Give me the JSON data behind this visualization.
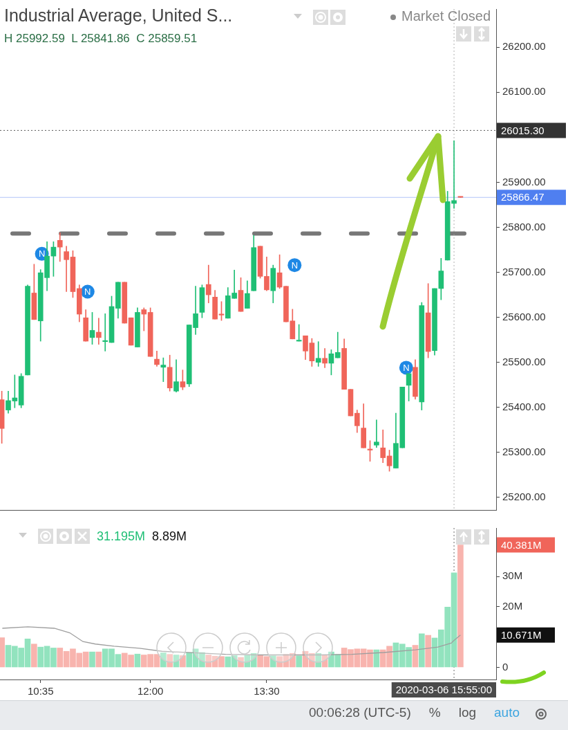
{
  "chart_data": [
    {
      "type": "candlestick",
      "title": "Industrial Average, United S...",
      "subtitle": "H 25992.59  L 25841.86  C 25859.51",
      "x": [
        10.0833,
        10.1667,
        10.25,
        10.3333,
        10.4167,
        10.5,
        10.5833,
        10.6667,
        10.75,
        10.8333,
        10.9167,
        11,
        11.0833,
        11.1667,
        11.25,
        11.3333,
        11.4167,
        11.5,
        11.5833,
        11.6667,
        11.75,
        11.8333,
        11.9167,
        12,
        12.0833,
        12.1667,
        12.25,
        12.3333,
        12.4167,
        12.5,
        12.5833,
        12.6667,
        12.75,
        12.8333,
        12.9167,
        13,
        13.0833,
        13.1667,
        13.25,
        13.3333,
        13.4167,
        13.5,
        13.5833,
        13.6667,
        13.75,
        13.8333,
        13.9167,
        14,
        14.0833,
        14.1667,
        14.25,
        14.3333,
        14.4167,
        14.5,
        14.5833,
        14.6667,
        14.75,
        14.8333,
        14.9167,
        15,
        15.0833,
        15.1667,
        15.25,
        15.3333,
        15.4167,
        15.5,
        15.5833,
        15.6667,
        15.75,
        15.8333,
        15.9167,
        16
      ],
      "ohlc": [
        [
          25417,
          25436,
          25320,
          25353
        ],
        [
          25394,
          25436,
          25387,
          25415
        ],
        [
          25414,
          25472,
          25399,
          25421
        ],
        [
          25405,
          25475,
          25399,
          25469
        ],
        [
          25472,
          25672,
          25472,
          25669
        ],
        [
          25654,
          25718,
          25595,
          25595
        ],
        [
          25592,
          25706,
          25547,
          25699
        ],
        [
          25688,
          25768,
          25659,
          25736
        ],
        [
          25736,
          25768,
          25691,
          25756
        ],
        [
          25771,
          25788,
          25724,
          25756
        ],
        [
          25746,
          25758,
          25657,
          25728
        ],
        [
          25734,
          25748,
          25644,
          25657
        ],
        [
          25664,
          25672,
          25590,
          25607
        ],
        [
          25599,
          25617,
          25547,
          25547
        ],
        [
          25555,
          25611,
          25540,
          25571
        ],
        [
          25567,
          25598,
          25540,
          25555
        ],
        [
          25546,
          25608,
          25525,
          25546
        ],
        [
          25544,
          25647,
          25544,
          25624
        ],
        [
          25620,
          25678,
          25598,
          25678
        ],
        [
          25678,
          25678,
          25587,
          25587
        ],
        [
          25599,
          25599,
          25538,
          25538
        ],
        [
          25534,
          25621,
          25534,
          25611
        ],
        [
          25617,
          25621,
          25570,
          25607
        ],
        [
          25611,
          25621,
          25513,
          25513
        ],
        [
          25507,
          25525,
          25491,
          25495
        ],
        [
          25489,
          25510,
          25457,
          25494
        ],
        [
          25489,
          25516,
          25436,
          25443
        ],
        [
          25436,
          25506,
          25434,
          25457
        ],
        [
          25457,
          25483,
          25439,
          25445
        ],
        [
          25452,
          25583,
          25446,
          25583
        ],
        [
          25577,
          25669,
          25562,
          25608
        ],
        [
          25611,
          25672,
          25599,
          25666
        ],
        [
          25673,
          25716,
          25632,
          25650
        ],
        [
          25645,
          25660,
          25596,
          25596
        ],
        [
          25605,
          25635,
          25593,
          25605
        ],
        [
          25598,
          25666,
          25598,
          25648
        ],
        [
          25642,
          25705,
          25642,
          25654
        ],
        [
          25660,
          25688,
          25613,
          25613
        ],
        [
          25620,
          25681,
          25620,
          25653
        ],
        [
          25659,
          25782,
          25659,
          25755
        ],
        [
          25758,
          25758,
          25687,
          25691
        ],
        [
          25691,
          25734,
          25659,
          25661
        ],
        [
          25659,
          25716,
          25632,
          25709
        ],
        [
          25699,
          25739,
          25664,
          25667
        ],
        [
          25669,
          25669,
          25590,
          25590
        ],
        [
          25592,
          25618,
          25552,
          25552
        ],
        [
          25547,
          25584,
          25547,
          25547
        ],
        [
          25559,
          25559,
          25506,
          25525
        ],
        [
          25543,
          25553,
          25491,
          25503
        ],
        [
          25500,
          25546,
          25491,
          25509
        ],
        [
          25509,
          25531,
          25488,
          25498
        ],
        [
          25498,
          25528,
          25472,
          25519
        ],
        [
          25510,
          25567,
          25510,
          25522
        ],
        [
          25531,
          25552,
          25440,
          25440
        ],
        [
          25440,
          25440,
          25381,
          25381
        ],
        [
          25387,
          25394,
          25344,
          25359
        ],
        [
          25354,
          25408,
          25310,
          25310
        ],
        [
          25305,
          25326,
          25280,
          25305
        ],
        [
          25316,
          25372,
          25311,
          25323
        ],
        [
          25310,
          25350,
          25277,
          25288
        ],
        [
          25292,
          25305,
          25258,
          25270
        ],
        [
          25265,
          25387,
          25265,
          25320
        ],
        [
          25310,
          25445,
          25310,
          25445
        ],
        [
          25449,
          25475,
          25414,
          25475
        ],
        [
          25489,
          25506,
          25418,
          25424
        ],
        [
          25412,
          25633,
          25394,
          25626
        ],
        [
          25610,
          25675,
          25510,
          25524
        ],
        [
          25526,
          25664,
          25516,
          25664
        ],
        [
          25664,
          25731,
          25639,
          25703
        ],
        [
          25727,
          25880,
          25727,
          25857
        ],
        [
          25853,
          25992.59,
          25841.86,
          25859.51
        ],
        [
          25868,
          25868,
          25866.47,
          25866.47
        ]
      ],
      "colors": [
        "#f0655a",
        "#1fbf75",
        "#1fbf75",
        "#1fbf75",
        "#1fbf75",
        "#f0655a",
        "#1fbf75",
        "#1fbf75",
        "#1fbf75",
        "#f0655a",
        "#f0655a",
        "#f0655a",
        "#f0655a",
        "#f0655a",
        "#1fbf75",
        "#f0655a",
        "#1fbf75",
        "#1fbf75",
        "#1fbf75",
        "#f0655a",
        "#f0655a",
        "#1fbf75",
        "#f0655a",
        "#f0655a",
        "#f0655a",
        "#1fbf75",
        "#f0655a",
        "#1fbf75",
        "#f0655a",
        "#1fbf75",
        "#1fbf75",
        "#1fbf75",
        "#f0655a",
        "#f0655a",
        "#f0655a",
        "#1fbf75",
        "#1fbf75",
        "#f0655a",
        "#1fbf75",
        "#1fbf75",
        "#f0655a",
        "#f0655a",
        "#1fbf75",
        "#f0655a",
        "#f0655a",
        "#f0655a",
        "#1fbf75",
        "#f0655a",
        "#f0655a",
        "#1fbf75",
        "#f0655a",
        "#1fbf75",
        "#1fbf75",
        "#f0655a",
        "#f0655a",
        "#f0655a",
        "#f0655a",
        "#f0655a",
        "#1fbf75",
        "#f0655a",
        "#f0655a",
        "#1fbf75",
        "#1fbf75",
        "#1fbf75",
        "#f0655a",
        "#1fbf75",
        "#f0655a",
        "#1fbf75",
        "#1fbf75",
        "#1fbf75",
        "#1fbf75",
        "#f0655a"
      ],
      "xlim": [
        10.06,
        16.46
      ],
      "ylim": [
        25172,
        26285
      ],
      "yticks": [
        {
          "value": 25200,
          "label": "25200.00"
        },
        {
          "value": 25300,
          "label": "25300.00"
        },
        {
          "value": 25400,
          "label": "25400.00"
        },
        {
          "value": 25500,
          "label": "25500.00"
        },
        {
          "value": 25600,
          "label": "25600.00"
        },
        {
          "value": 25700,
          "label": "25700.00"
        },
        {
          "value": 25800,
          "label": "25800.00"
        },
        {
          "value": 25900,
          "label": "25900.00"
        },
        {
          "value": 26100,
          "label": "26100.00"
        },
        {
          "value": 26200,
          "label": "26200.00"
        }
      ],
      "tick_labels": "y",
      "ref_lines": [
        {
          "axis": "y",
          "value": 26015.3,
          "label": "26015.30",
          "color": "#333333",
          "line_style": "dotted"
        },
        {
          "axis": "y",
          "value": 25866.47,
          "label": "25866.47",
          "color": "#4f7ff0",
          "line_style": "solid"
        },
        {
          "axis": "y",
          "value": 25786,
          "color": "#555555",
          "line_style": "dashed"
        },
        {
          "axis": "x",
          "value": 15.9167,
          "color": "#9e9e9e",
          "line_style": "dotted"
        }
      ],
      "annotations": [
        "Market Closed",
        {
          "text": "N",
          "x": 10.6,
          "y": 25741
        },
        {
          "text": "N",
          "x": 11.19,
          "y": 25657
        },
        {
          "text": "N",
          "x": 13.86,
          "y": 25716
        },
        {
          "text": "N",
          "x": 15.3,
          "y": 25488
        }
      ]
    },
    {
      "type": "bar",
      "x": [
        10.0833,
        10.1667,
        10.25,
        10.3333,
        10.4167,
        10.5,
        10.5833,
        10.6667,
        10.75,
        10.8333,
        10.9167,
        11,
        11.0833,
        11.1667,
        11.25,
        11.3333,
        11.4167,
        11.5,
        11.5833,
        11.6667,
        11.75,
        11.8333,
        11.9167,
        12,
        12.0833,
        12.1667,
        12.25,
        12.3333,
        12.4167,
        12.5,
        12.5833,
        12.6667,
        12.75,
        12.8333,
        12.9167,
        13,
        13.0833,
        13.1667,
        13.25,
        13.3333,
        13.4167,
        13.5,
        13.5833,
        13.6667,
        13.75,
        13.8333,
        13.9167,
        14,
        14.0833,
        14.1667,
        14.25,
        14.3333,
        14.4167,
        14.5,
        14.5833,
        14.6667,
        14.75,
        14.8333,
        14.9167,
        15,
        15.0833,
        15.1667,
        15.25,
        15.3333,
        15.4167,
        15.5,
        15.5833,
        15.6667,
        15.75,
        15.8333,
        15.9167,
        16
      ],
      "series": [
        {
          "type": "bar",
          "values": [
            9.8,
            7.3,
            7.0,
            6.4,
            9.4,
            7.7,
            6.7,
            7.0,
            6.4,
            6.4,
            5.3,
            6.1,
            4.7,
            5.1,
            5.1,
            5.1,
            6.1,
            6.1,
            4.3,
            4.7,
            4.1,
            4.4,
            4.1,
            4.3,
            4.3,
            4.8,
            4.3,
            4.1,
            3.9,
            4.9,
            6.1,
            4.9,
            4.1,
            3.7,
            3.6,
            3.5,
            3.9,
            3.3,
            3.9,
            4.6,
            4.1,
            3.6,
            3.8,
            3.6,
            4.3,
            4.6,
            3.8,
            5.3,
            4.6,
            4.6,
            4.1,
            5.1,
            4.3,
            6.4,
            5.9,
            6.1,
            6.1,
            5.8,
            5.8,
            5.8,
            7.0,
            8.1,
            7.7,
            6.6,
            7.3,
            11.1,
            10.6,
            9.7,
            12.4,
            19.9,
            31.195,
            40.381
          ],
          "colors": [
            "#f8b4ae",
            "#92e3be",
            "#92e3be",
            "#92e3be",
            "#92e3be",
            "#f8b4ae",
            "#92e3be",
            "#92e3be",
            "#92e3be",
            "#f8b4ae",
            "#f8b4ae",
            "#f8b4ae",
            "#f8b4ae",
            "#f8b4ae",
            "#92e3be",
            "#f8b4ae",
            "#92e3be",
            "#92e3be",
            "#92e3be",
            "#f8b4ae",
            "#f8b4ae",
            "#92e3be",
            "#f8b4ae",
            "#f8b4ae",
            "#f8b4ae",
            "#92e3be",
            "#f8b4ae",
            "#92e3be",
            "#f8b4ae",
            "#92e3be",
            "#92e3be",
            "#92e3be",
            "#f8b4ae",
            "#f8b4ae",
            "#f8b4ae",
            "#92e3be",
            "#92e3be",
            "#f8b4ae",
            "#92e3be",
            "#92e3be",
            "#f8b4ae",
            "#f8b4ae",
            "#92e3be",
            "#f8b4ae",
            "#f8b4ae",
            "#f8b4ae",
            "#92e3be",
            "#f8b4ae",
            "#f8b4ae",
            "#92e3be",
            "#f8b4ae",
            "#92e3be",
            "#92e3be",
            "#f8b4ae",
            "#f8b4ae",
            "#f8b4ae",
            "#f8b4ae",
            "#f8b4ae",
            "#92e3be",
            "#f8b4ae",
            "#f8b4ae",
            "#92e3be",
            "#92e3be",
            "#92e3be",
            "#f8b4ae",
            "#92e3be",
            "#f8b4ae",
            "#92e3be",
            "#92e3be",
            "#92e3be",
            "#92e3be",
            "#f8b4ae"
          ]
        },
        {
          "type": "line",
          "color": "#9e9e9e",
          "x": [
            10.09,
            10.42,
            10.76,
            10.96,
            11.13,
            11.29,
            11.53,
            11.86,
            12.15,
            12.56,
            12.97,
            13.38,
            14.19,
            14.6,
            15.01,
            15.42,
            15.71,
            15.88,
            15.9167,
            16
          ],
          "values": [
            12.9,
            13.4,
            12.9,
            11.4,
            8.5,
            7.7,
            7.0,
            6.3,
            5.3,
            4.8,
            4.3,
            4.1,
            4.1,
            4.3,
            4.9,
            5.8,
            6.7,
            8.0,
            8.89,
            10.671
          ]
        }
      ],
      "xlim": [
        10.06,
        16.46
      ],
      "xticks": [
        {
          "value": 10.5833,
          "label": "10:35"
        },
        {
          "value": 12,
          "label": "12:00"
        },
        {
          "value": 13.5,
          "label": "13:30"
        }
      ],
      "ylim": [
        -4,
        46
      ],
      "yticks": [
        {
          "value": 0,
          "label": "0"
        },
        {
          "value": 20,
          "label": "20M"
        },
        {
          "value": 30,
          "label": "30M"
        }
      ],
      "marker": "none",
      "ref_lines": [
        {
          "axis": "x",
          "value": 15.9167,
          "color": "#4a4a4a",
          "line_style": "dotted"
        }
      ],
      "annotations": [
        "31.195M",
        "8.89M",
        "2020-03-06 15:55:00",
        "40.381M",
        "10.671M",
        "00:06:28 (UTC-5)",
        "%",
        "log",
        "auto"
      ]
    }
  ]
}
